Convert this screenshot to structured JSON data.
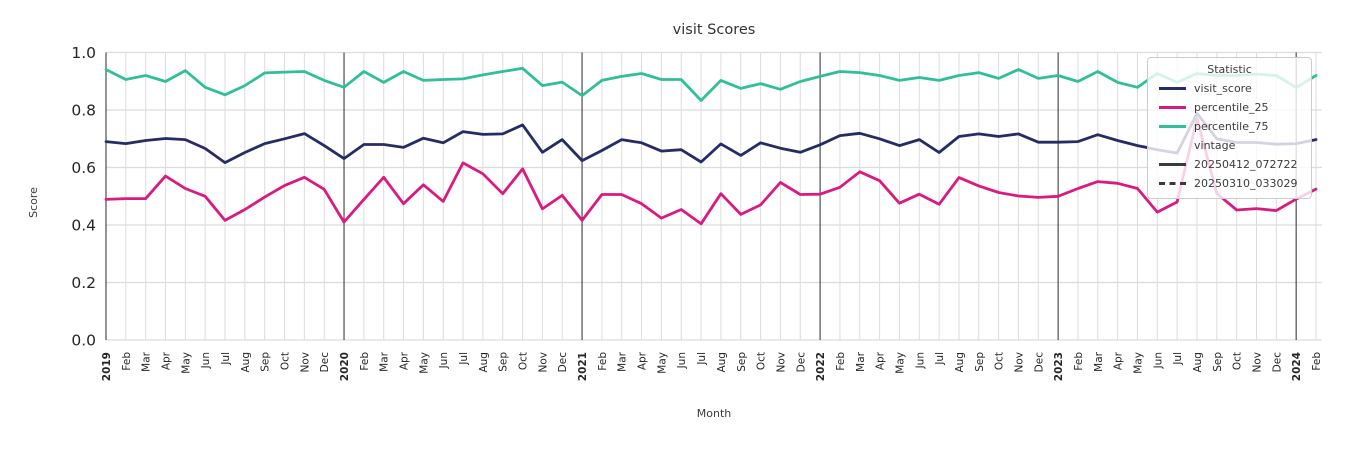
{
  "title": "visit Scores",
  "axes": {
    "x_label": "Month",
    "y_label": "Score",
    "y_ticks": [
      "0.0",
      "0.2",
      "0.4",
      "0.6",
      "0.8",
      "1.0"
    ]
  },
  "legend": {
    "title": "Statistic",
    "series_items": [
      {
        "label": "visit_score",
        "color": "#262c64",
        "style": "solid"
      },
      {
        "label": "percentile_25",
        "color": "#d91a80",
        "style": "solid"
      },
      {
        "label": "percentile_75",
        "color": "#31bf99",
        "style": "solid"
      }
    ],
    "subtitle": "vintage",
    "vintage_items": [
      {
        "label": "20250412_072722",
        "color": "#3a3a3a",
        "style": "solid"
      },
      {
        "label": "20250310_033029",
        "color": "#3a3a3a",
        "style": "dashed"
      }
    ]
  },
  "chart_data": {
    "type": "line",
    "title": "visit Scores",
    "xlabel": "Month",
    "ylabel": "Score",
    "ylim": [
      0.0,
      1.0
    ],
    "grid": true,
    "legend_position": "upper right",
    "x_tick_labels": [
      "2019",
      "Feb",
      "Mar",
      "Apr",
      "May",
      "Jun",
      "Jul",
      "Aug",
      "Sep",
      "Oct",
      "Nov",
      "Dec",
      "2020",
      "Feb",
      "Mar",
      "Apr",
      "May",
      "Jun",
      "Jul",
      "Aug",
      "Sep",
      "Oct",
      "Nov",
      "Dec",
      "2021",
      "Feb",
      "Mar",
      "Apr",
      "May",
      "Jun",
      "Jul",
      "Aug",
      "Sep",
      "Oct",
      "Nov",
      "Dec",
      "2022",
      "Feb",
      "Mar",
      "Apr",
      "May",
      "Jun",
      "Jul",
      "Aug",
      "Sep",
      "Oct",
      "Nov",
      "Dec",
      "2023",
      "Feb",
      "Mar",
      "Apr",
      "May",
      "Jun",
      "Jul",
      "Aug",
      "Sep",
      "Oct",
      "Nov",
      "Dec",
      "2024",
      "Feb"
    ],
    "year_line_indices": [
      0,
      12,
      24,
      36,
      48,
      60
    ],
    "series": [
      {
        "name": "visit_score",
        "color": "#262c64",
        "values": [
          0.69,
          0.683,
          0.694,
          0.701,
          0.697,
          0.666,
          0.617,
          0.652,
          0.683,
          0.7,
          0.718,
          0.676,
          0.631,
          0.68,
          0.68,
          0.67,
          0.702,
          0.686,
          0.725,
          0.715,
          0.717,
          0.748,
          0.653,
          0.697,
          0.624,
          0.659,
          0.697,
          0.686,
          0.657,
          0.662,
          0.619,
          0.682,
          0.642,
          0.686,
          0.667,
          0.653,
          0.679,
          0.711,
          0.719,
          0.7,
          0.676,
          0.697,
          0.652,
          0.708,
          0.717,
          0.708,
          0.717,
          0.688,
          0.688,
          0.69,
          0.714,
          0.694,
          0.676,
          0.662,
          0.65,
          0.788,
          0.7,
          0.687,
          0.687,
          0.681,
          0.683,
          0.697
        ]
      },
      {
        "name": "percentile_25",
        "color": "#d91a80",
        "values": [
          0.489,
          0.492,
          0.492,
          0.57,
          0.527,
          0.5,
          0.416,
          0.454,
          0.497,
          0.537,
          0.566,
          0.524,
          0.41,
          0.489,
          0.566,
          0.474,
          0.54,
          0.482,
          0.616,
          0.578,
          0.509,
          0.595,
          0.456,
          0.503,
          0.416,
          0.506,
          0.506,
          0.474,
          0.424,
          0.454,
          0.404,
          0.509,
          0.437,
          0.47,
          0.548,
          0.506,
          0.507,
          0.531,
          0.585,
          0.554,
          0.476,
          0.507,
          0.472,
          0.565,
          0.536,
          0.513,
          0.501,
          0.496,
          0.5,
          0.527,
          0.551,
          0.545,
          0.527,
          0.445,
          0.48,
          0.77,
          0.51,
          0.452,
          0.457,
          0.45,
          0.49,
          0.525
        ]
      },
      {
        "name": "percentile_75",
        "color": "#31bf99",
        "values": [
          0.941,
          0.906,
          0.92,
          0.899,
          0.937,
          0.879,
          0.853,
          0.885,
          0.929,
          0.932,
          0.934,
          0.903,
          0.879,
          0.934,
          0.896,
          0.934,
          0.903,
          0.906,
          0.908,
          0.922,
          0.934,
          0.945,
          0.885,
          0.897,
          0.85,
          0.903,
          0.917,
          0.927,
          0.906,
          0.906,
          0.833,
          0.903,
          0.875,
          0.892,
          0.872,
          0.899,
          0.917,
          0.934,
          0.93,
          0.92,
          0.903,
          0.913,
          0.903,
          0.92,
          0.93,
          0.91,
          0.941,
          0.91,
          0.92,
          0.899,
          0.934,
          0.896,
          0.879,
          0.927,
          0.896,
          0.927,
          0.92,
          0.92,
          0.925,
          0.92,
          0.878,
          0.92
        ]
      }
    ]
  },
  "style": {
    "grid_color": "#dcdcdc",
    "year_line_color": "#3d3d3d",
    "tick_color": "#262626",
    "line_width": 2.8
  }
}
